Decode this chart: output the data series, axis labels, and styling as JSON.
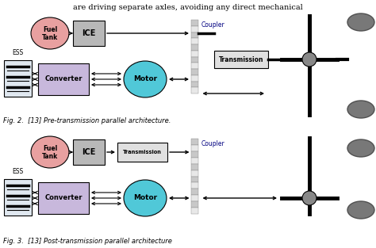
{
  "title_text": "are driving separate axles, avoiding any direct mechanical",
  "fig2_caption": "Fig. 2.  [13] Pre-transmission parallel architecture.",
  "fig3_caption": "Fig. 3.  [13] Post-transmission parallel architecture",
  "bg_color": "#ffffff",
  "fuel_tank_color": "#e8a0a0",
  "ice_color": "#b8b8b8",
  "converter_color": "#c8b8dc",
  "motor_color": "#50c8d8",
  "transmission_color": "#e0e0e0",
  "ess_color": "#e0e8f0",
  "coupler_color": "#c8c8c8",
  "wheel_color": "#787878",
  "axle_color": "#000000",
  "text_color": "#000000",
  "blue_text": "#000080"
}
